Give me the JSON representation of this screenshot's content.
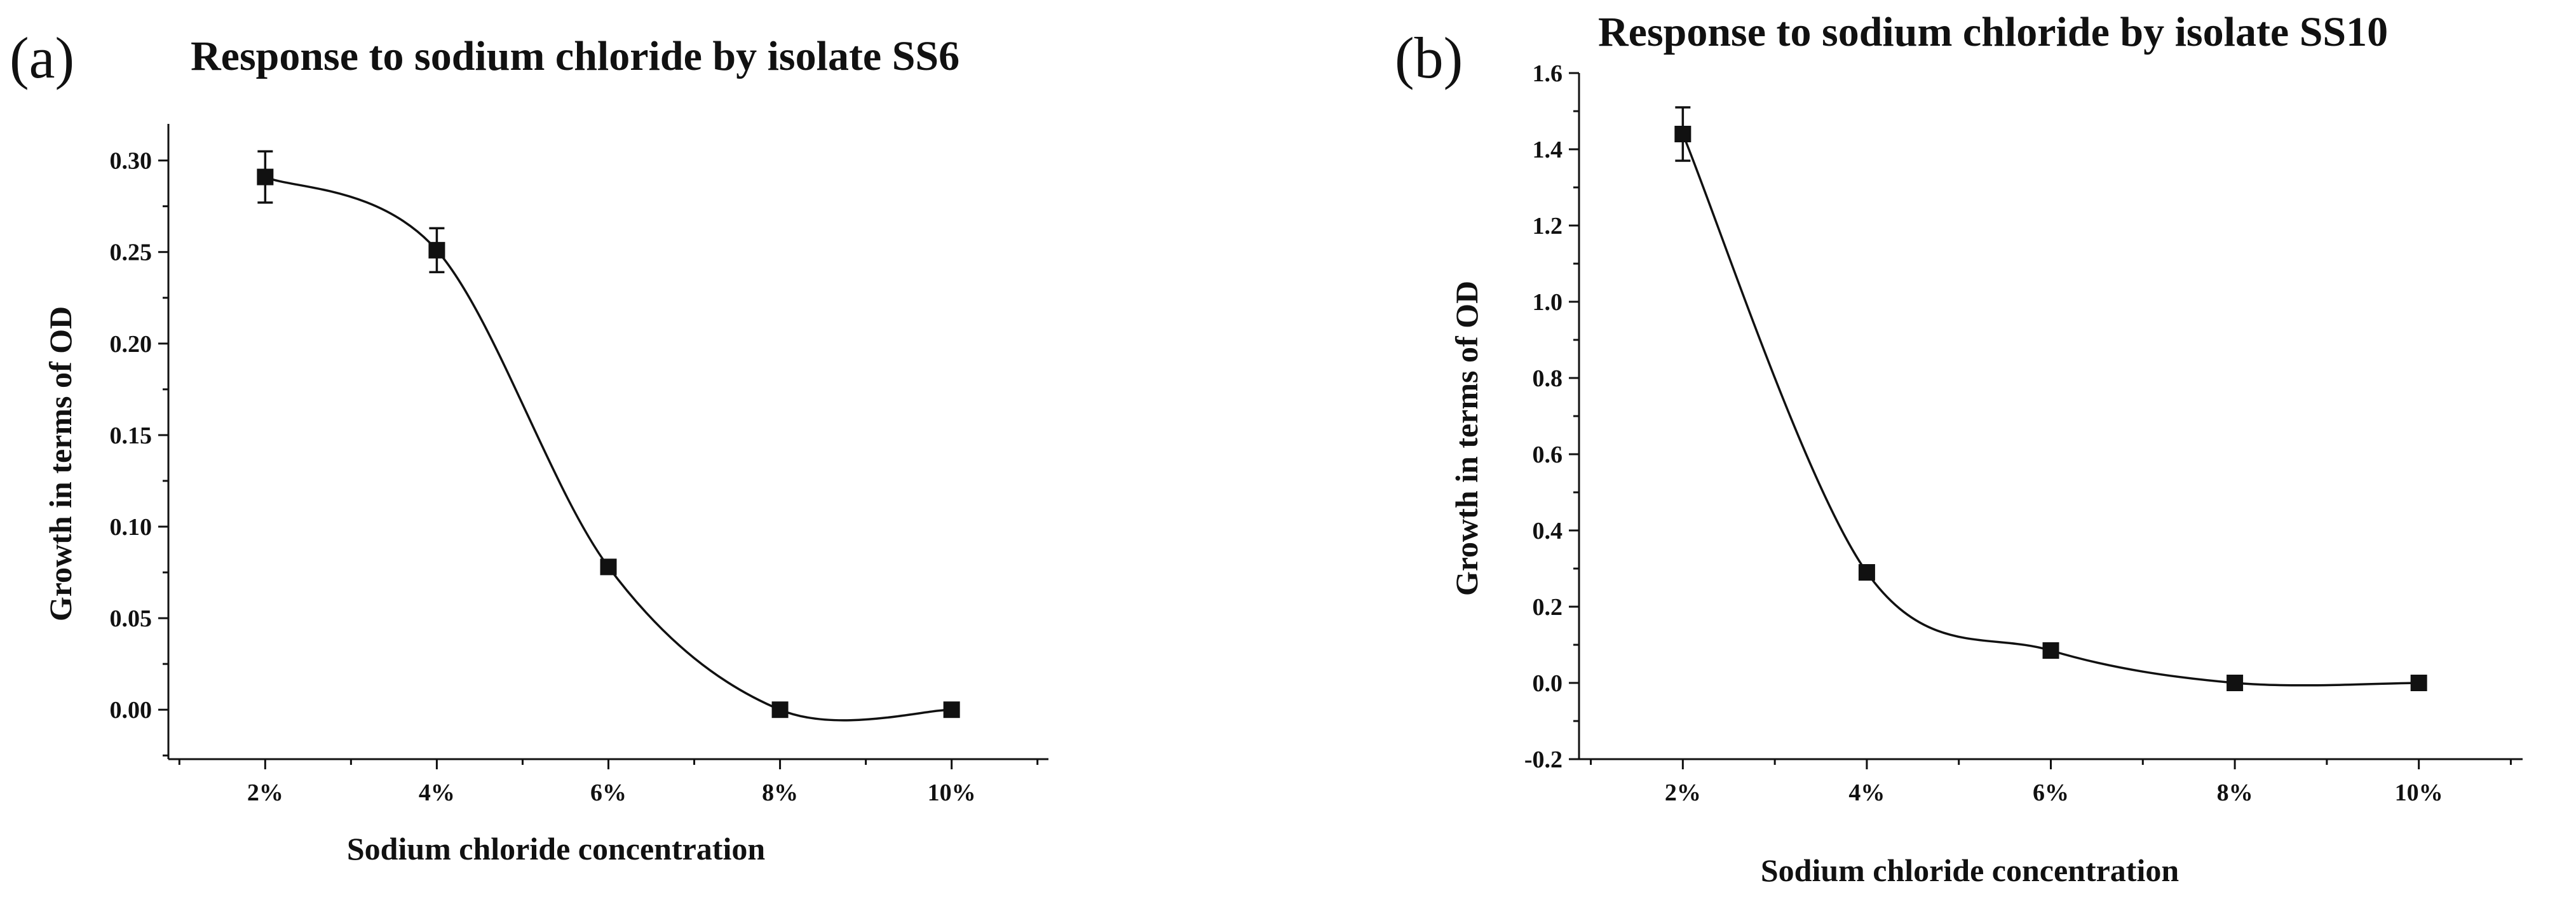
{
  "chart_data": [
    {
      "type": "line",
      "panel_label": "(a)",
      "title": "Response to sodium chloride by isolate SS6",
      "xlabel": "Sodium chloride concentration",
      "ylabel": "Growth in terms of OD",
      "categories": [
        "2%",
        "4%",
        "6%",
        "8%",
        "10%"
      ],
      "values": [
        0.291,
        0.251,
        0.078,
        0.0,
        0.0
      ],
      "errors": [
        0.014,
        0.012,
        0.0,
        0.0,
        0.0
      ],
      "ylim": [
        -0.027,
        0.32
      ],
      "yticks": [
        0.0,
        0.05,
        0.1,
        0.15,
        0.2,
        0.25,
        0.3
      ],
      "ytick_labels": [
        "0.00",
        "0.05",
        "0.10",
        "0.15",
        "0.20",
        "0.25",
        "0.30"
      ],
      "marker": "square",
      "fit": "smooth spline",
      "grid": false
    },
    {
      "type": "line",
      "panel_label": "(b)",
      "title": "Response to sodium chloride by isolate SS10",
      "xlabel": "Sodium chloride concentration",
      "ylabel": "Growth in terms of OD",
      "categories": [
        "2%",
        "4%",
        "6%",
        "8%",
        "10%"
      ],
      "values": [
        1.44,
        0.29,
        0.085,
        0.0,
        0.0
      ],
      "errors": [
        0.07,
        0.0,
        0.0,
        0.0,
        0.0
      ],
      "ylim": [
        -0.2,
        1.6
      ],
      "yticks": [
        -0.2,
        0.0,
        0.2,
        0.4,
        0.6,
        0.8,
        1.0,
        1.2,
        1.4,
        1.6
      ],
      "ytick_labels": [
        "-0.2",
        "0.0",
        "0.2",
        "0.4",
        "0.6",
        "0.8",
        "1.0",
        "1.2",
        "1.4",
        "1.6"
      ],
      "marker": "square",
      "fit": "smooth spline",
      "grid": false
    }
  ]
}
